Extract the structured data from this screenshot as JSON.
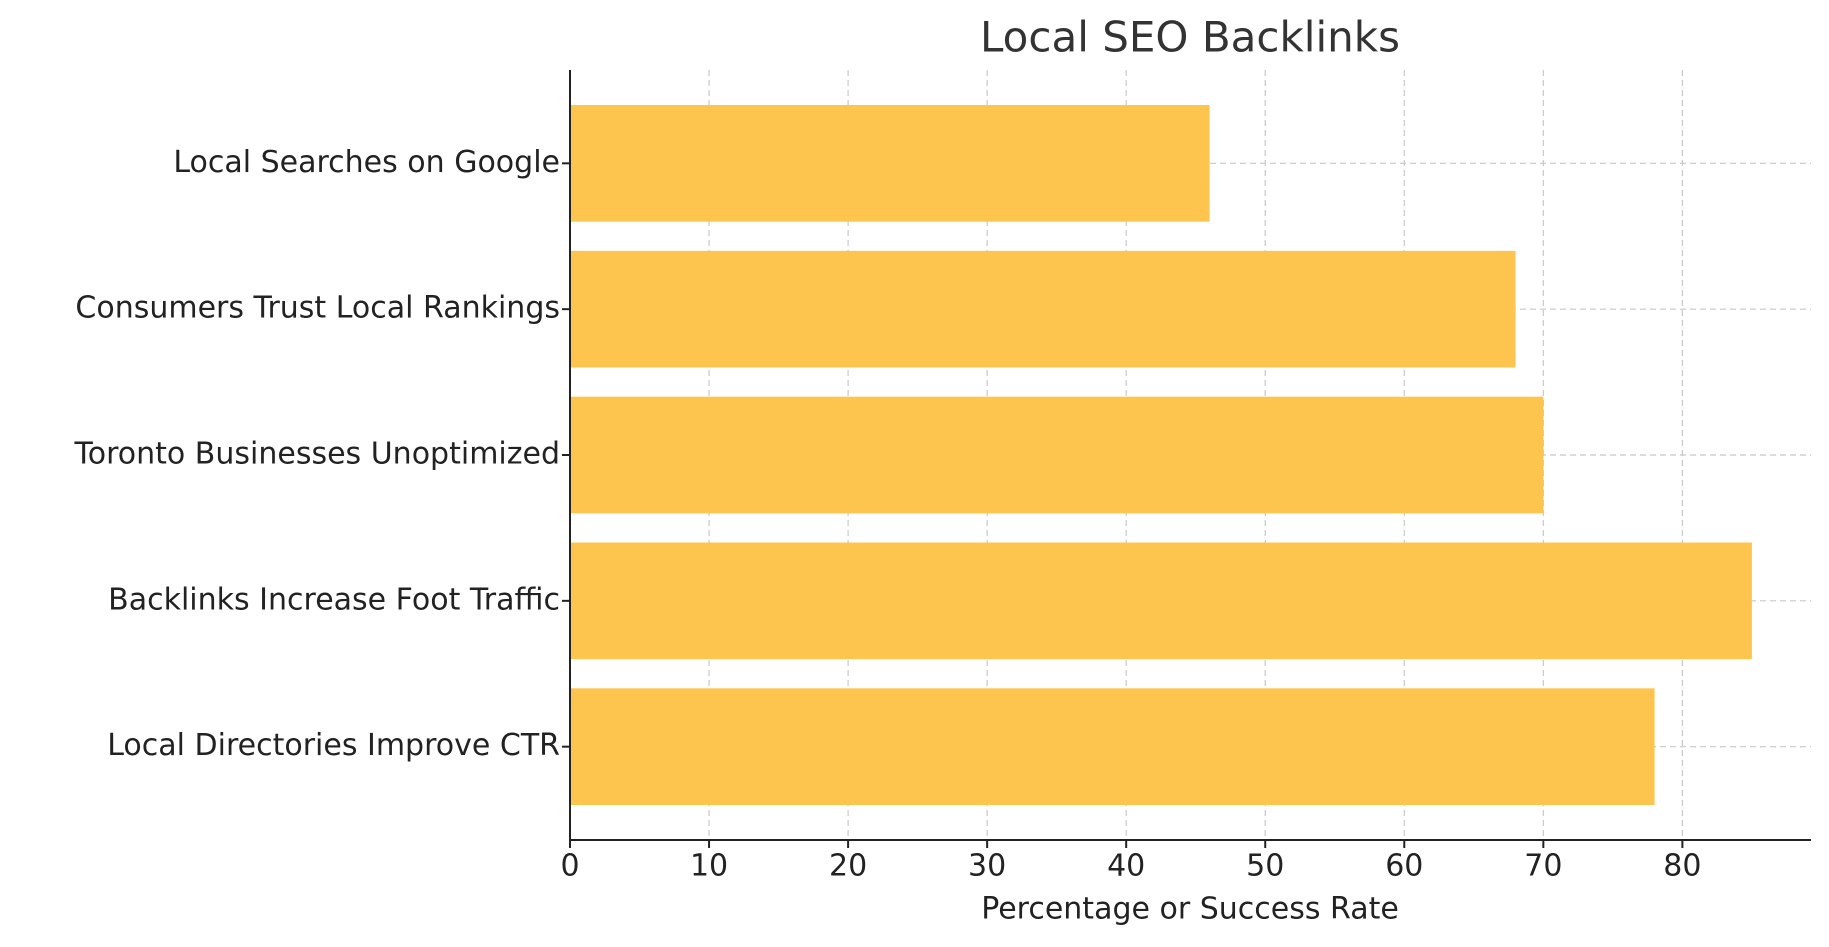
{
  "chart_data": {
    "type": "bar",
    "orientation": "horizontal",
    "title": "Local SEO Backlinks",
    "x_label": "Percentage or Success Rate",
    "categories": [
      "Local Searches on Google",
      "Consumers Trust Local Rankings",
      "Toronto Businesses Unoptimized",
      "Backlinks Increase Foot Traffic",
      "Local Directories Improve CTR"
    ],
    "values": [
      46,
      68,
      70,
      85,
      78
    ],
    "color": "#fdc54e",
    "xlim": [
      0,
      89.25
    ],
    "xticks": [
      0,
      10,
      20,
      30,
      40,
      50,
      60,
      70,
      80
    ],
    "grid": true
  }
}
